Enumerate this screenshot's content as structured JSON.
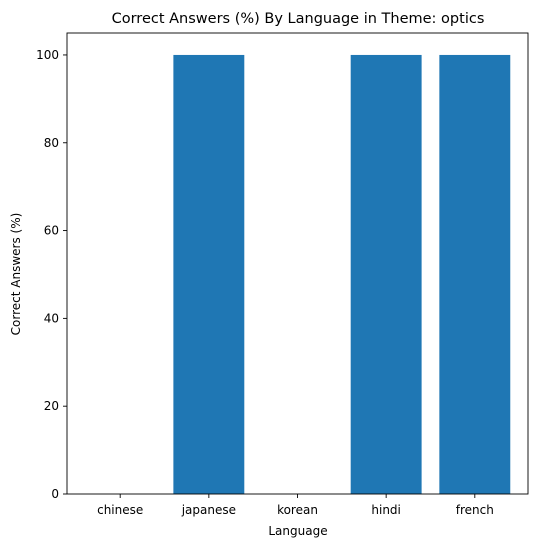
{
  "chart_data": {
    "type": "bar",
    "title": "Correct Answers (%) By Language in Theme: optics",
    "xlabel": "Language",
    "ylabel": "Correct Answers (%)",
    "categories": [
      "chinese",
      "japanese",
      "korean",
      "hindi",
      "french"
    ],
    "values": [
      0,
      100,
      0,
      100,
      100
    ],
    "ylim": [
      0,
      105
    ],
    "yticks": [
      0,
      20,
      40,
      60,
      80,
      100
    ],
    "grid": false,
    "legend": "none",
    "bar_color": "#1f77b4"
  }
}
